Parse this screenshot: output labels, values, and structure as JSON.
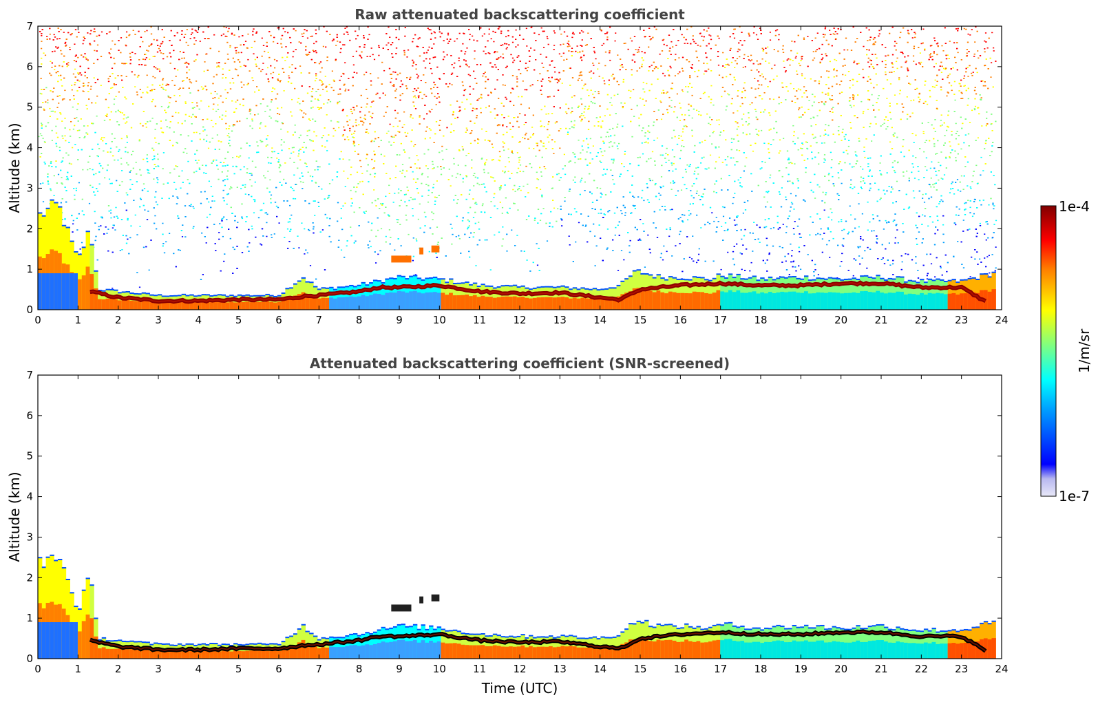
{
  "chart_data": [
    {
      "type": "heatmap",
      "title": "Raw attenuated backscattering coefficient",
      "xlabel": "",
      "ylabel": "Altitude (km)",
      "xlim": [
        0,
        24
      ],
      "ylim": [
        0,
        7
      ],
      "xticks": [
        "0",
        "1",
        "2",
        "3",
        "4",
        "5",
        "6",
        "7",
        "8",
        "9",
        "10",
        "11",
        "12",
        "13",
        "14",
        "15",
        "16",
        "17",
        "18",
        "19",
        "20",
        "21",
        "22",
        "23",
        "24"
      ],
      "yticks": [
        "0",
        "1",
        "2",
        "3",
        "4",
        "5",
        "6",
        "7"
      ],
      "screened": false,
      "layer_top_km": {
        "time_utc": [
          0,
          0.5,
          1.0,
          1.3,
          1.5,
          3,
          5,
          6,
          6.6,
          7,
          8,
          9,
          10,
          11,
          12,
          13,
          14,
          14.5,
          14.9,
          15.5,
          16,
          16.8,
          17,
          18,
          19,
          20,
          21,
          22,
          23,
          23.8
        ],
        "altitude_km": [
          2.3,
          2.6,
          1.2,
          2.0,
          0.5,
          0.35,
          0.35,
          0.35,
          0.8,
          0.5,
          0.6,
          0.8,
          0.75,
          0.6,
          0.55,
          0.55,
          0.5,
          0.6,
          0.95,
          0.8,
          0.8,
          0.75,
          0.85,
          0.75,
          0.8,
          0.75,
          0.8,
          0.7,
          0.7,
          0.9
        ]
      },
      "bright_layer_km": {
        "time_utc": [
          1.3,
          2,
          3,
          4,
          5,
          6,
          6.8,
          7,
          8,
          8.5,
          9,
          10,
          11,
          12,
          13,
          14,
          14.5,
          15,
          16,
          17,
          18,
          19,
          20,
          21,
          22,
          23,
          23.6
        ],
        "altitude_km": [
          0.45,
          0.3,
          0.22,
          0.22,
          0.25,
          0.25,
          0.35,
          0.35,
          0.45,
          0.55,
          0.55,
          0.6,
          0.45,
          0.4,
          0.42,
          0.3,
          0.25,
          0.5,
          0.6,
          0.65,
          0.6,
          0.6,
          0.65,
          0.65,
          0.55,
          0.55,
          0.2
        ]
      },
      "elevated_features": [
        {
          "time_utc": [
            8.8,
            9.3
          ],
          "altitude_km": 1.25
        },
        {
          "time_utc": [
            9.5,
            9.6
          ],
          "altitude_km": 1.45
        },
        {
          "time_utc": [
            9.8,
            10.0
          ],
          "altitude_km": 1.5
        }
      ]
    },
    {
      "type": "heatmap",
      "title": "Attenuated backscattering coefficient (SNR-screened)",
      "xlabel": "Time (UTC)",
      "ylabel": "Altitude (km)",
      "xlim": [
        0,
        24
      ],
      "ylim": [
        0,
        7
      ],
      "xticks": [
        "0",
        "1",
        "2",
        "3",
        "4",
        "5",
        "6",
        "7",
        "8",
        "9",
        "10",
        "11",
        "12",
        "13",
        "14",
        "15",
        "16",
        "17",
        "18",
        "19",
        "20",
        "21",
        "22",
        "23",
        "24"
      ],
      "yticks": [
        "0",
        "1",
        "2",
        "3",
        "4",
        "5",
        "6",
        "7"
      ],
      "screened": true,
      "layer_top_km": {
        "time_utc": [
          0,
          0.5,
          1.0,
          1.3,
          1.5,
          3,
          5,
          6,
          6.6,
          7,
          8,
          9,
          10,
          11,
          12,
          13,
          14,
          14.5,
          14.9,
          15.5,
          16,
          16.8,
          17,
          18,
          19,
          20,
          21,
          22,
          23,
          23.8
        ],
        "altitude_km": [
          2.3,
          2.6,
          1.2,
          2.0,
          0.5,
          0.35,
          0.35,
          0.35,
          0.8,
          0.5,
          0.6,
          0.8,
          0.75,
          0.6,
          0.55,
          0.55,
          0.5,
          0.6,
          0.95,
          0.8,
          0.8,
          0.75,
          0.85,
          0.75,
          0.8,
          0.75,
          0.8,
          0.7,
          0.7,
          0.9
        ]
      },
      "bright_layer_km": {
        "time_utc": [
          1.3,
          2,
          3,
          4,
          5,
          6,
          6.8,
          7,
          8,
          8.5,
          9,
          10,
          11,
          12,
          13,
          14,
          14.5,
          15,
          16,
          17,
          18,
          19,
          20,
          21,
          22,
          23,
          23.6
        ],
        "altitude_km": [
          0.45,
          0.3,
          0.22,
          0.22,
          0.25,
          0.25,
          0.35,
          0.35,
          0.45,
          0.55,
          0.55,
          0.6,
          0.45,
          0.4,
          0.42,
          0.3,
          0.25,
          0.5,
          0.6,
          0.65,
          0.6,
          0.6,
          0.65,
          0.65,
          0.55,
          0.55,
          0.2
        ]
      },
      "elevated_features": [
        {
          "time_utc": [
            8.8,
            9.3
          ],
          "altitude_km": 1.25
        },
        {
          "time_utc": [
            9.5,
            9.6
          ],
          "altitude_km": 1.45
        },
        {
          "time_utc": [
            9.8,
            10.0
          ],
          "altitude_km": 1.5
        }
      ]
    }
  ],
  "colorbar": {
    "max_label": "1e-4",
    "min_label": "1e-7",
    "unit": "1/m/sr",
    "scale": "log",
    "colormap": [
      "#e8e8f8",
      "#b8b8f0",
      "#0000ff",
      "#00a0ff",
      "#00ffff",
      "#80ff80",
      "#ffff00",
      "#ff8000",
      "#ff0000",
      "#800000"
    ]
  }
}
